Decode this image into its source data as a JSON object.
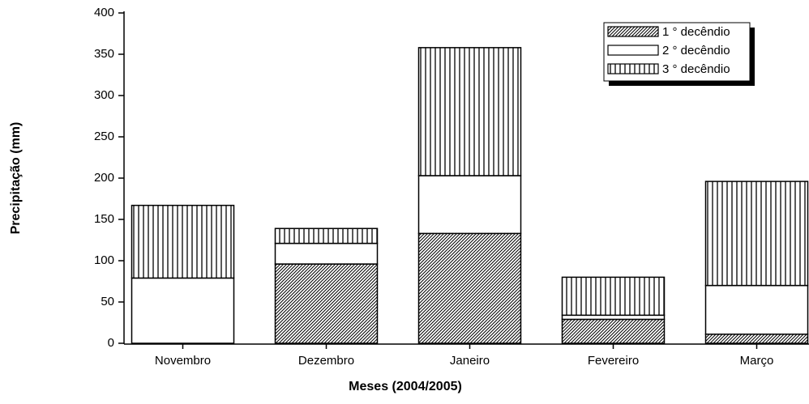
{
  "chart_data": {
    "type": "stacked-bar",
    "x_label": "Meses (2004/2005)",
    "y_label": "Precipitação (mm)",
    "categories": [
      "Novembro",
      "Dezembro",
      "Janeiro",
      "Fevereiro",
      "Março"
    ],
    "series": [
      {
        "name": "1 ° decêndio",
        "color": "#000000",
        "pattern": "diagonal",
        "values": [
          0,
          96,
          133,
          29,
          11
        ]
      },
      {
        "name": "2 ° decêndio",
        "color": "#000000",
        "pattern": "none",
        "values": [
          79,
          25,
          70,
          5,
          59
        ]
      },
      {
        "name": "3 ° decêndio",
        "color": "#000000",
        "pattern": "vertical",
        "values": [
          88,
          18,
          155,
          46,
          126
        ]
      }
    ],
    "ylim": [
      0,
      400
    ],
    "yticks": [
      0,
      50,
      100,
      150,
      200,
      250,
      300,
      350,
      400
    ],
    "legend": "upper right"
  }
}
